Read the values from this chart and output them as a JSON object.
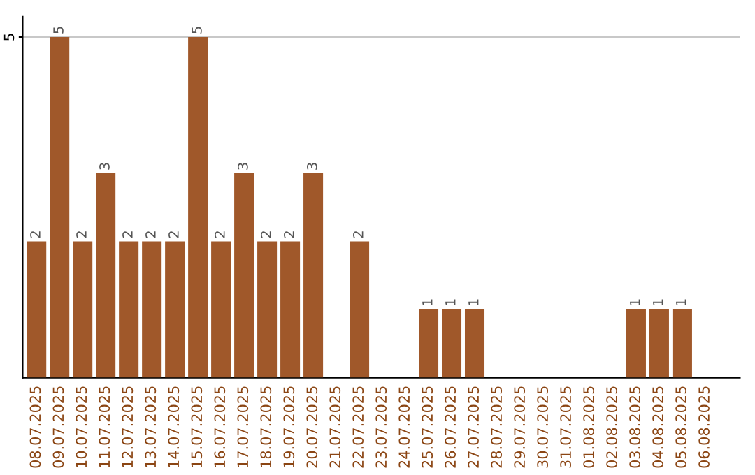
{
  "chart_data": {
    "type": "bar",
    "categories": [
      "08.07.2025",
      "09.07.2025",
      "10.07.2025",
      "11.07.2025",
      "12.07.2025",
      "13.07.2025",
      "14.07.2025",
      "15.07.2025",
      "16.07.2025",
      "17.07.2025",
      "18.07.2025",
      "19.07.2025",
      "20.07.2025",
      "21.07.2025",
      "22.07.2025",
      "23.07.2025",
      "24.07.2025",
      "25.07.2025",
      "26.07.2025",
      "27.07.2025",
      "28.07.2025",
      "29.07.2025",
      "30.07.2025",
      "31.07.2025",
      "01.08.2025",
      "02.08.2025",
      "03.08.2025",
      "04.08.2025",
      "05.08.2025",
      "06.08.2025"
    ],
    "values": [
      2,
      5,
      2,
      3,
      2,
      2,
      2,
      5,
      2,
      3,
      2,
      2,
      3,
      0,
      2,
      0,
      0,
      1,
      1,
      1,
      0,
      0,
      0,
      0,
      0,
      0,
      1,
      1,
      1,
      0
    ],
    "value_labels": [
      "2",
      "5",
      "2",
      "3",
      "2",
      "2",
      "2",
      "5",
      "2",
      "3",
      "2",
      "2",
      "3",
      null,
      "2",
      null,
      null,
      "1",
      "1",
      "1",
      null,
      null,
      null,
      null,
      null,
      null,
      "1",
      "1",
      "1",
      null
    ],
    "color": "#a0582a",
    "ylim": [
      0,
      5.3
    ],
    "yticks": [
      5
    ],
    "grid": "y"
  }
}
